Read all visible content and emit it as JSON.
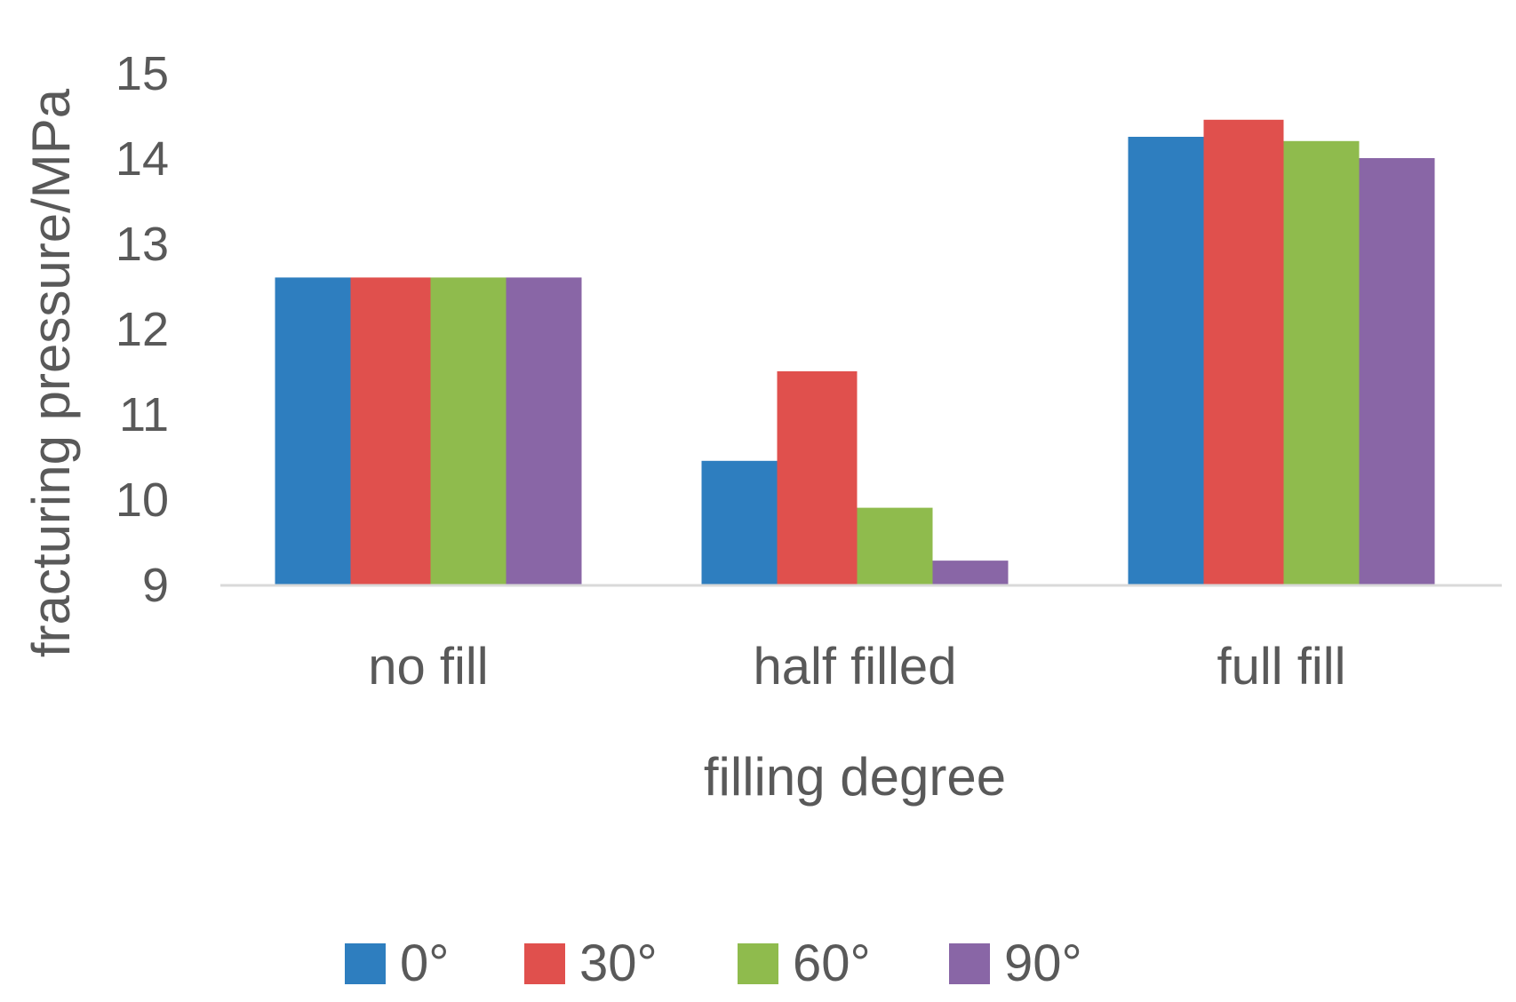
{
  "chart_data": {
    "type": "bar",
    "xlabel": "filling degree",
    "ylabel": "fracturing pressure/MPa",
    "ylim": [
      9,
      15
    ],
    "yticks": [
      "9",
      "10",
      "11",
      "12",
      "13",
      "14",
      "15"
    ],
    "categories": [
      "no fill",
      "half filled",
      "full fill"
    ],
    "series": [
      {
        "name": "0°",
        "color": "#2e7ebf",
        "values": [
          12.6,
          10.45,
          14.25
        ]
      },
      {
        "name": "30°",
        "color": "#e0504d",
        "values": [
          12.6,
          11.5,
          14.45
        ]
      },
      {
        "name": "60°",
        "color": "#8fbb4d",
        "values": [
          12.6,
          9.9,
          14.2
        ]
      },
      {
        "name": "90°",
        "color": "#8966a6",
        "values": [
          12.6,
          9.28,
          14.0
        ]
      }
    ],
    "grid": false,
    "legend": "bottom",
    "axis_color": "#d9d9d9"
  }
}
